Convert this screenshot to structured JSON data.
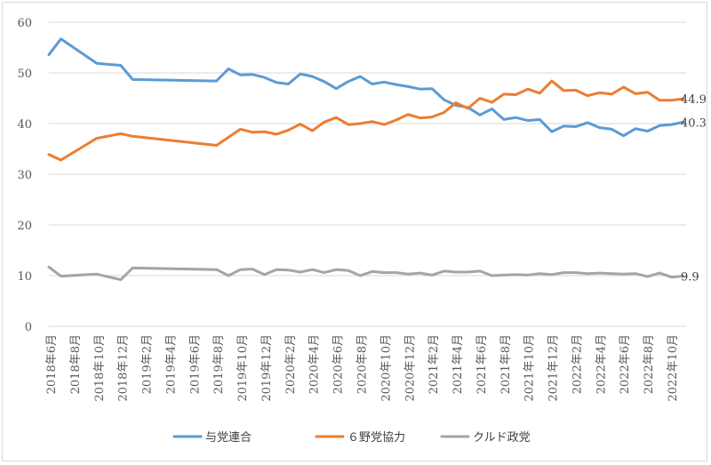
{
  "chart_data": {
    "type": "line",
    "title": "",
    "xlabel": "",
    "ylabel": "",
    "ylim": [
      0,
      60
    ],
    "yticks": [
      0,
      10,
      20,
      30,
      40,
      50,
      60
    ],
    "grid": "horizontal",
    "legend_position": "bottom",
    "x_tick_labels": [
      "2018年6月",
      "2018年8月",
      "2018年10月",
      "2018年12月",
      "2019年2月",
      "2019年4月",
      "2019年6月",
      "2019年8月",
      "2019年10月",
      "2019年12月",
      "2020年2月",
      "2020年4月",
      "2020年6月",
      "2020年8月",
      "2020年10月",
      "2020年12月",
      "2021年2月",
      "2021年4月",
      "2021年6月",
      "2021年8月",
      "2021年10月",
      "2021年12月",
      "2022年2月",
      "2022年4月",
      "2022年6月",
      "2022年8月",
      "2022年10月"
    ],
    "x": [
      "2018-06",
      "2018-07",
      "2018-10",
      "2018-12",
      "2019-01",
      "2019-08",
      "2019-09",
      "2019-10",
      "2019-11",
      "2019-12",
      "2020-01",
      "2020-02",
      "2020-03",
      "2020-04",
      "2020-05",
      "2020-06",
      "2020-07",
      "2020-08",
      "2020-09",
      "2020-10",
      "2020-11",
      "2020-12",
      "2021-01",
      "2021-02",
      "2021-03",
      "2021-04",
      "2021-05",
      "2021-06",
      "2021-07",
      "2021-08",
      "2021-09",
      "2021-10",
      "2021-11",
      "2021-12",
      "2022-01",
      "2022-02",
      "2022-03",
      "2022-04",
      "2022-05",
      "2022-06",
      "2022-07",
      "2022-08",
      "2022-09",
      "2022-10",
      "2022-11"
    ],
    "series": [
      {
        "name": "与党連合",
        "color": "#5b9bd5",
        "values": [
          53.6,
          56.7,
          51.9,
          51.5,
          48.7,
          48.4,
          50.8,
          49.6,
          49.7,
          49.1,
          48.1,
          47.8,
          49.8,
          49.3,
          48.3,
          46.9,
          48.3,
          49.3,
          47.8,
          48.2,
          47.7,
          47.3,
          46.8,
          46.9,
          44.7,
          43.6,
          43.2,
          41.7,
          42.9,
          40.8,
          41.2,
          40.6,
          40.8,
          38.4,
          39.5,
          39.4,
          40.2,
          39.2,
          38.9,
          37.6,
          39.0,
          38.5,
          39.6,
          39.8,
          40.3
        ],
        "end_label": "40.3"
      },
      {
        "name": "６野党協力",
        "color": "#ed7d31",
        "values": [
          33.9,
          32.8,
          37.1,
          38.0,
          37.5,
          35.7,
          37.3,
          38.9,
          38.3,
          38.4,
          37.9,
          38.7,
          39.9,
          38.6,
          40.3,
          41.2,
          39.8,
          40.0,
          40.4,
          39.8,
          40.7,
          41.8,
          41.1,
          41.3,
          42.2,
          44.1,
          43.0,
          45.0,
          44.2,
          45.8,
          45.7,
          46.8,
          46.0,
          48.4,
          46.5,
          46.6,
          45.5,
          46.1,
          45.8,
          47.2,
          45.9,
          46.2,
          44.6,
          44.6,
          44.9
        ],
        "end_label": "44.9"
      },
      {
        "name": "クルド政党",
        "color": "#a5a5a5",
        "values": [
          11.7,
          9.9,
          10.3,
          9.2,
          11.5,
          11.2,
          10.0,
          11.2,
          11.3,
          10.2,
          11.2,
          11.1,
          10.7,
          11.2,
          10.6,
          11.2,
          11.0,
          10.0,
          10.8,
          10.6,
          10.6,
          10.3,
          10.5,
          10.1,
          10.9,
          10.7,
          10.7,
          10.9,
          10.0,
          10.1,
          10.2,
          10.1,
          10.4,
          10.2,
          10.6,
          10.6,
          10.4,
          10.5,
          10.4,
          10.3,
          10.4,
          9.8,
          10.5,
          9.7,
          9.9
        ],
        "end_label": "9.9"
      }
    ]
  }
}
